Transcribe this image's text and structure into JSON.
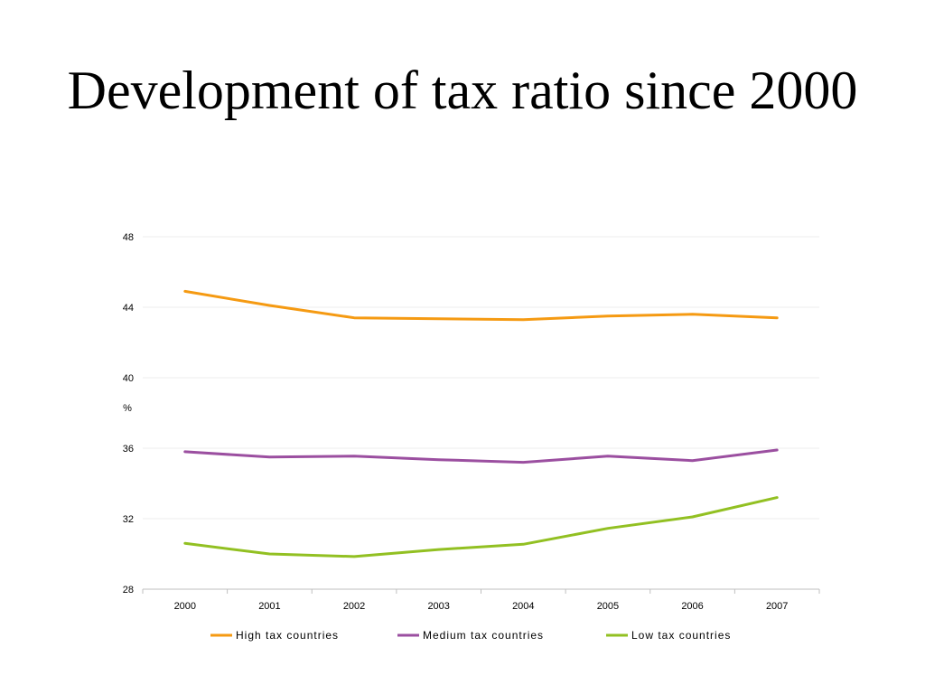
{
  "slide": {
    "title": "Development of tax ratio since 2000"
  },
  "chart_data": {
    "type": "line",
    "title": "Development of tax ratio since 2000",
    "xlabel": "",
    "ylabel": "%",
    "categories": [
      "2000",
      "2001",
      "2002",
      "2003",
      "2004",
      "2005",
      "2006",
      "2007"
    ],
    "ylim": [
      28,
      48
    ],
    "yticks": [
      28,
      32,
      36,
      40,
      44,
      48
    ],
    "grid": true,
    "legend_position": "bottom",
    "series": [
      {
        "name": "High tax countries",
        "color": "#F59A12",
        "values": [
          44.9,
          44.1,
          43.4,
          43.35,
          43.3,
          43.5,
          43.6,
          43.4
        ]
      },
      {
        "name": "Medium tax countries",
        "color": "#9B4FA0",
        "values": [
          35.8,
          35.5,
          35.55,
          35.35,
          35.2,
          35.55,
          35.3,
          35.9
        ]
      },
      {
        "name": "Low tax countries",
        "color": "#92C022",
        "values": [
          30.6,
          30.0,
          29.85,
          30.25,
          30.55,
          31.45,
          32.1,
          33.2
        ]
      }
    ]
  }
}
